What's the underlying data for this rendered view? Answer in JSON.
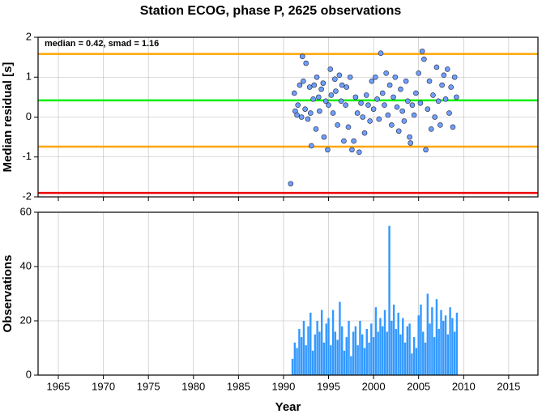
{
  "chart_data": [
    {
      "type": "scatter",
      "title": "Station ECOG, phase P, 2625 observations",
      "ylabel": "Median residual [s]",
      "annotation": "median = 0.42, smad = 1.16",
      "xlim": [
        1962.75,
        2018.25
      ],
      "xticks": [
        1965,
        1970,
        1975,
        1980,
        1985,
        1990,
        1995,
        2000,
        2005,
        2010,
        2015
      ],
      "ylim": [
        -2,
        2
      ],
      "yticks": [
        -2,
        -1,
        0,
        1,
        2
      ],
      "grid": true,
      "color": "#6f9fff",
      "hlines": [
        {
          "value": 1.58,
          "color": "#ffa500"
        },
        {
          "value": 0.42,
          "color": "#00ee00"
        },
        {
          "value": -0.74,
          "color": "#ffa500"
        },
        {
          "value": -1.9,
          "color": "#ee0000"
        }
      ],
      "x": [
        1990.8,
        1991.2,
        1991.3,
        1991.5,
        1991.6,
        1991.8,
        1992.0,
        1992.1,
        1992.2,
        1992.4,
        1992.5,
        1992.7,
        1992.9,
        1993.0,
        1993.1,
        1993.3,
        1993.4,
        1993.6,
        1993.7,
        1993.9,
        1994.0,
        1994.2,
        1994.4,
        1994.5,
        1994.7,
        1994.9,
        1995.0,
        1995.2,
        1995.3,
        1995.5,
        1995.7,
        1995.8,
        1996.0,
        1996.2,
        1996.4,
        1996.5,
        1996.7,
        1996.9,
        1997.0,
        1997.2,
        1997.4,
        1997.6,
        1997.8,
        1998.0,
        1998.2,
        1998.4,
        1998.6,
        1998.8,
        1999.0,
        1999.2,
        1999.4,
        1999.6,
        1999.8,
        2000.0,
        2000.2,
        2000.4,
        2000.6,
        2000.8,
        2001.0,
        2001.2,
        2001.4,
        2001.6,
        2001.8,
        2002.0,
        2002.2,
        2002.4,
        2002.6,
        2002.8,
        2003.0,
        2003.2,
        2003.4,
        2003.6,
        2003.8,
        2004.0,
        2004.1,
        2004.3,
        2004.5,
        2004.7,
        2005.0,
        2005.2,
        2005.4,
        2005.6,
        2005.8,
        2006.0,
        2006.2,
        2006.4,
        2006.6,
        2006.8,
        2007.0,
        2007.2,
        2007.4,
        2007.6,
        2007.8,
        2008.0,
        2008.2,
        2008.4,
        2008.6,
        2008.8,
        2009.0,
        2009.2
      ],
      "y": [
        -1.67,
        0.6,
        0.15,
        0.05,
        0.3,
        0.8,
        0.0,
        1.52,
        0.9,
        0.2,
        1.35,
        -0.05,
        0.75,
        0.1,
        -0.72,
        0.45,
        0.8,
        -0.3,
        1.0,
        0.5,
        0.15,
        0.7,
        0.85,
        -0.5,
        0.4,
        -0.82,
        0.3,
        1.2,
        0.55,
        0.1,
        0.95,
        0.65,
        -0.2,
        1.05,
        0.4,
        0.8,
        -0.6,
        0.3,
        0.75,
        -0.25,
        1.0,
        -0.82,
        -0.6,
        0.5,
        0.1,
        -0.88,
        0.35,
        0.0,
        -0.4,
        0.55,
        0.3,
        -0.1,
        0.9,
        0.2,
        1.0,
        0.45,
        -0.05,
        1.6,
        0.6,
        0.3,
        1.1,
        0.05,
        0.8,
        -0.2,
        0.5,
        1.0,
        0.25,
        -0.35,
        0.7,
        0.15,
        -0.1,
        0.9,
        0.4,
        -0.5,
        -0.65,
        0.3,
        0.05,
        0.6,
        1.1,
        0.35,
        1.65,
        1.45,
        -0.82,
        0.2,
        0.9,
        -0.3,
        0.55,
        0.0,
        1.25,
        0.4,
        -0.2,
        0.8,
        1.05,
        0.45,
        1.2,
        0.1,
        0.75,
        -0.25,
        1.0,
        0.5
      ]
    },
    {
      "type": "bar",
      "xlabel": "Year",
      "ylabel": "Observations",
      "xlim": [
        1962.75,
        2018.25
      ],
      "xticks": [
        1965,
        1970,
        1975,
        1980,
        1985,
        1990,
        1995,
        2000,
        2005,
        2010,
        2015
      ],
      "ylim": [
        0,
        60
      ],
      "yticks": [
        0,
        20,
        40,
        60
      ],
      "grid": true,
      "color": "#3399ff",
      "x": [
        1991,
        1991.25,
        1991.5,
        1991.75,
        1992,
        1992.25,
        1992.5,
        1992.75,
        1993,
        1993.25,
        1993.5,
        1993.75,
        1994,
        1994.25,
        1994.5,
        1994.75,
        1995,
        1995.25,
        1995.5,
        1995.75,
        1996,
        1996.25,
        1996.5,
        1996.75,
        1997,
        1997.25,
        1997.5,
        1997.75,
        1998,
        1998.25,
        1998.5,
        1998.75,
        1999,
        1999.25,
        1999.5,
        1999.75,
        2000,
        2000.25,
        2000.5,
        2000.75,
        2001,
        2001.25,
        2001.5,
        2001.75,
        2002,
        2002.25,
        2002.5,
        2002.75,
        2003,
        2003.25,
        2003.5,
        2003.75,
        2004,
        2004.25,
        2004.5,
        2004.75,
        2005,
        2005.25,
        2005.5,
        2005.75,
        2006,
        2006.25,
        2006.5,
        2006.75,
        2007,
        2007.25,
        2007.5,
        2007.75,
        2008,
        2008.25,
        2008.5,
        2008.75,
        2009,
        2009.25
      ],
      "values": [
        6,
        12,
        10,
        17,
        14,
        20,
        11,
        18,
        23,
        9,
        15,
        20,
        16,
        24,
        12,
        19,
        21,
        11,
        24,
        16,
        13,
        27,
        18,
        9,
        14,
        20,
        7,
        16,
        18,
        11,
        20,
        15,
        10,
        17,
        12,
        19,
        14,
        25,
        16,
        21,
        18,
        24,
        16,
        55,
        20,
        26,
        17,
        23,
        15,
        21,
        12,
        18,
        19,
        8,
        14,
        10,
        22,
        26,
        16,
        12,
        30,
        19,
        25,
        14,
        28,
        17,
        24,
        20,
        22,
        15,
        25,
        21,
        16,
        23
      ]
    }
  ]
}
